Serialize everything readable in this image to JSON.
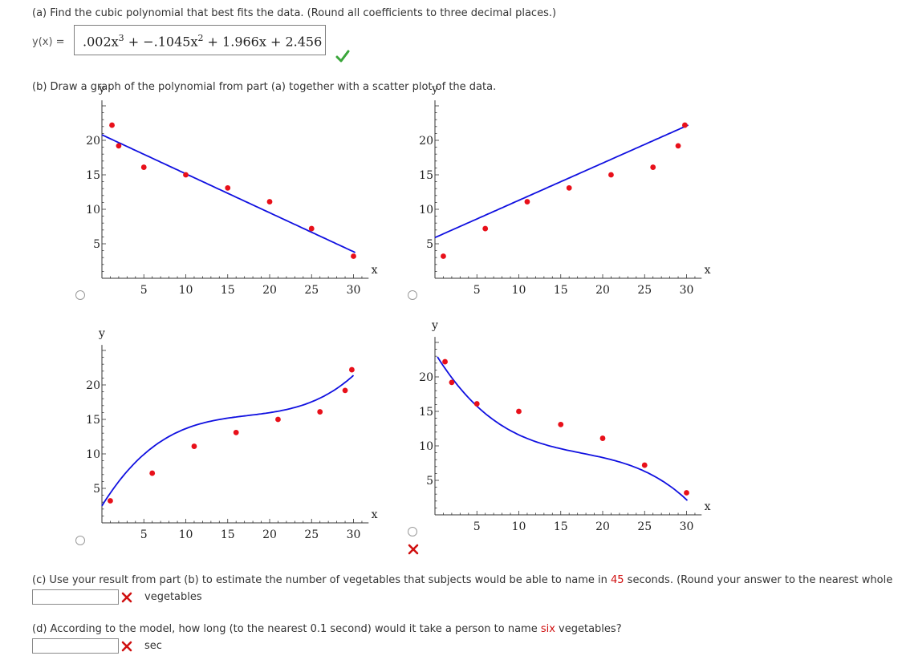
{
  "part_a": {
    "prompt": "(a) Find the cubic polynomial that best fits the data. (Round all coefficients to three decimal places.)",
    "y_label": "y(x) =",
    "answer": {
      "c3": ".002x",
      "e3": "3",
      "sep1": " + ",
      "c2": "−.1045x",
      "e2": "2",
      "rest": " + 1.966x + 2.456"
    },
    "status_icon": "check-icon",
    "status_color": "#3aa63a"
  },
  "part_b": {
    "prompt": "(b) Draw a graph of the polynomial from part (a) together with a scatter plot of the data.",
    "graphs": [
      {
        "id": "graph-1",
        "curve": "line-decreasing",
        "x_axis_var": "x",
        "y_axis_var": "y",
        "x_ticks": [
          "5",
          "10",
          "15",
          "20",
          "25",
          "30"
        ],
        "y_ticks": [
          "5",
          "10",
          "15",
          "20"
        ]
      },
      {
        "id": "graph-2",
        "curve": "line-increasing",
        "x_axis_var": "x",
        "y_axis_var": "y",
        "x_ticks": [
          "5",
          "10",
          "15",
          "20",
          "25",
          "30"
        ],
        "y_ticks": [
          "5",
          "10",
          "15",
          "20"
        ]
      },
      {
        "id": "graph-3",
        "curve": "cubic-increasing",
        "x_axis_var": "x",
        "y_axis_var": "y",
        "x_ticks": [
          "5",
          "10",
          "15",
          "20",
          "25",
          "30"
        ],
        "y_ticks": [
          "5",
          "10",
          "15",
          "20"
        ]
      },
      {
        "id": "graph-4",
        "curve": "cubic-decreasing",
        "x_axis_var": "x",
        "y_axis_var": "y",
        "x_ticks": [
          "5",
          "10",
          "15",
          "20",
          "25",
          "30"
        ],
        "y_ticks": [
          "5",
          "10",
          "15",
          "20"
        ]
      }
    ],
    "data_point_color": "#e8101a",
    "curve_color": "#1010e0",
    "graph4_status_icon": "cross-icon"
  },
  "part_c": {
    "prompt_before": "(c) Use your result from part (b) to estimate the number of vegetables that subjects would be able to name in ",
    "highlight": "45",
    "prompt_after": " seconds. (Round your answer to the nearest whole",
    "input_value": "",
    "status_icon": "cross-icon",
    "unit": "vegetables"
  },
  "part_d": {
    "prompt_before": "(d) According to the model, how long (to the nearest 0.1 second) would it take a person to name ",
    "highlight": "six",
    "prompt_after": " vegetables?",
    "input_value": "",
    "status_icon": "cross-icon",
    "unit": "sec"
  },
  "colors": {
    "error": "#d01010",
    "check": "#3aa63a",
    "axis": "#333333"
  }
}
